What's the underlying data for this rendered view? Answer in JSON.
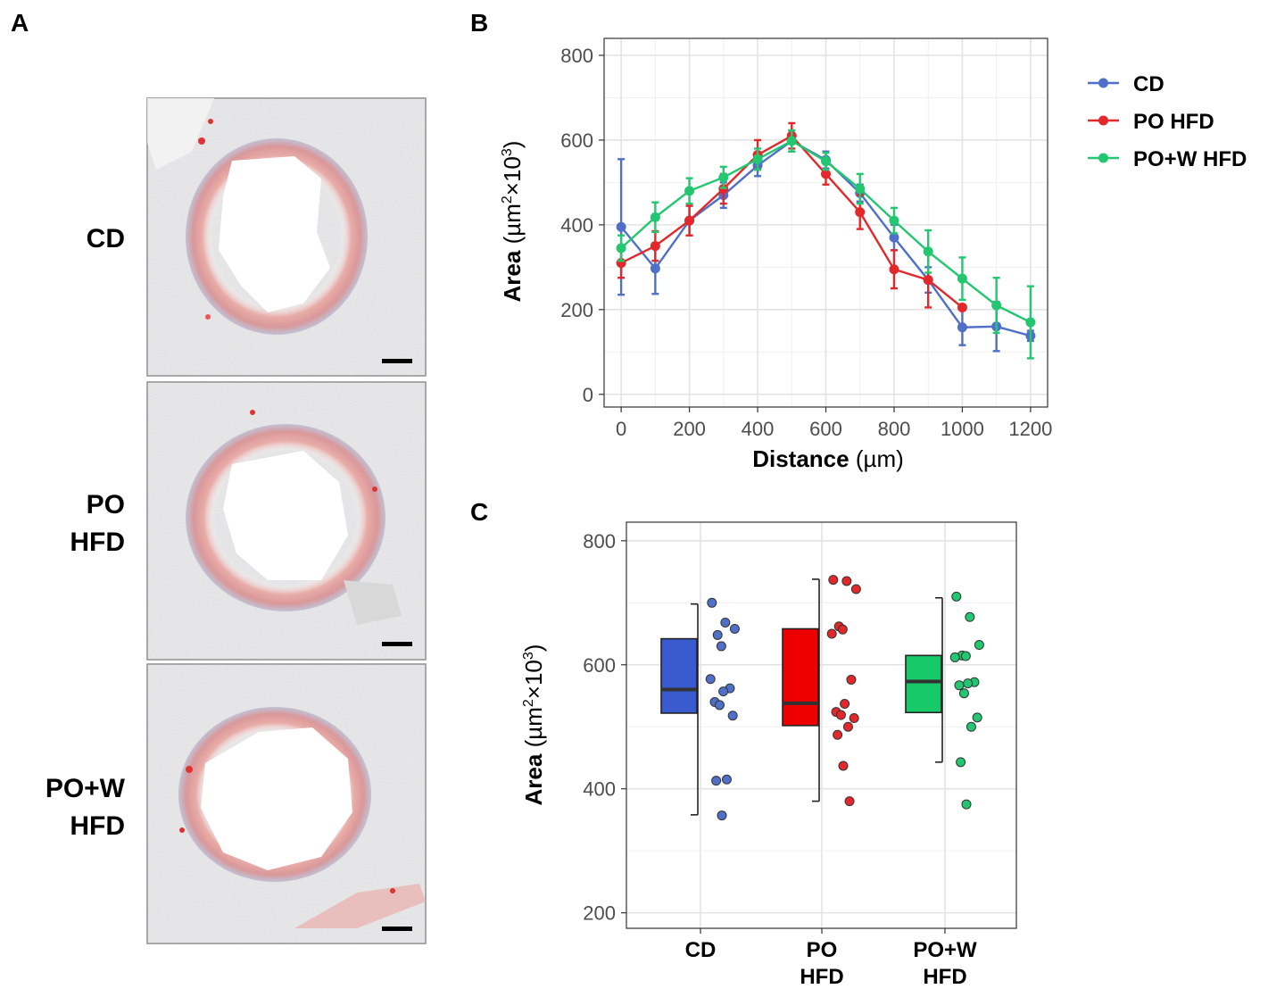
{
  "panels": {
    "a_letter": "A",
    "b_letter": "B",
    "c_letter": "C"
  },
  "micrographs": {
    "rows": [
      {
        "label_line1": "CD",
        "label_line2": ""
      },
      {
        "label_line1": "PO",
        "label_line2": "HFD"
      },
      {
        "label_line1": "PO+W",
        "label_line2": "HFD"
      }
    ]
  },
  "chart_data": [
    {
      "type": "line",
      "panel": "B",
      "xlabel_bold": "Distance",
      "xlabel_unit": "(µm)",
      "ylabel_bold": "Area",
      "ylabel_unit_pre": "(µm",
      "ylabel_unit_mid": "×10",
      "ylabel_unit_post": ")",
      "ylabel_sup": "2",
      "ylabel_sup2": "3",
      "xlim": [
        -50,
        1250
      ],
      "ylim": [
        -30,
        840
      ],
      "x_ticks": [
        0,
        200,
        400,
        600,
        800,
        1000,
        1200
      ],
      "y_ticks": [
        0,
        200,
        400,
        600,
        800
      ],
      "grid": true,
      "legend_position": "right",
      "series": [
        {
          "name": "CD",
          "color": "#4f6fc9",
          "x": [
            0,
            100,
            200,
            300,
            400,
            500,
            600,
            700,
            800,
            900,
            1000,
            1100,
            1200
          ],
          "y": [
            395,
            297,
            410,
            470,
            540,
            598,
            553,
            475,
            370,
            270,
            158,
            160,
            138
          ],
          "err": [
            160,
            60,
            35,
            30,
            25,
            25,
            20,
            20,
            30,
            30,
            42,
            58,
            12
          ]
        },
        {
          "name": "PO HFD",
          "color": "#e3282b",
          "x": [
            0,
            100,
            200,
            300,
            400,
            500,
            600,
            700,
            800,
            900,
            1000
          ],
          "y": [
            310,
            350,
            410,
            485,
            565,
            610,
            520,
            430,
            295,
            270,
            205
          ],
          "err": [
            35,
            35,
            35,
            35,
            35,
            30,
            25,
            40,
            45,
            65,
            0
          ]
        },
        {
          "name": "PO+W HFD",
          "color": "#22c76f",
          "x": [
            0,
            100,
            200,
            300,
            400,
            500,
            600,
            700,
            800,
            900,
            1000,
            1100,
            1200
          ],
          "y": [
            345,
            418,
            480,
            512,
            555,
            598,
            550,
            485,
            410,
            337,
            273,
            210,
            170
          ],
          "err": [
            30,
            35,
            30,
            25,
            25,
            25,
            20,
            35,
            30,
            50,
            50,
            65,
            85
          ]
        }
      ]
    },
    {
      "type": "box",
      "panel": "C",
      "ylabel_bold": "Area",
      "ylabel_unit_pre": "(µm",
      "ylabel_unit_mid": "×10",
      "ylabel_unit_post": ")",
      "ylabel_sup": "2",
      "ylabel_sup2": "3",
      "ylim": [
        175,
        830
      ],
      "y_ticks": [
        200,
        400,
        600,
        800
      ],
      "grid": true,
      "categories": [
        {
          "line1": "CD",
          "line2": ""
        },
        {
          "line1": "PO",
          "line2": "HFD"
        },
        {
          "line1": "PO+W",
          "line2": "HFD"
        }
      ],
      "groups": [
        {
          "name": "CD",
          "color": "#3a5bd0",
          "point_color": "#4f6fc9",
          "q1": 522,
          "median": 560,
          "q3": 642,
          "whisker_low": 358,
          "whisker_high": 698,
          "points": [
            700,
            668,
            658,
            648,
            630,
            577,
            562,
            557,
            540,
            535,
            518,
            415,
            413,
            357
          ]
        },
        {
          "name": "PO HFD",
          "color": "#ee0000",
          "point_color": "#e3282b",
          "q1": 502,
          "median": 538,
          "q3": 658,
          "whisker_low": 380,
          "whisker_high": 738,
          "points": [
            737,
            735,
            722,
            662,
            657,
            650,
            576,
            537,
            524,
            519,
            514,
            500,
            487,
            437,
            380
          ]
        },
        {
          "name": "PO+W HFD",
          "color": "#18c96a",
          "point_color": "#22c76f",
          "q1": 523,
          "median": 573,
          "q3": 615,
          "whisker_low": 443,
          "whisker_high": 708,
          "points": [
            710,
            677,
            632,
            615,
            614,
            612,
            572,
            570,
            567,
            554,
            515,
            500,
            443,
            375
          ]
        }
      ]
    }
  ]
}
